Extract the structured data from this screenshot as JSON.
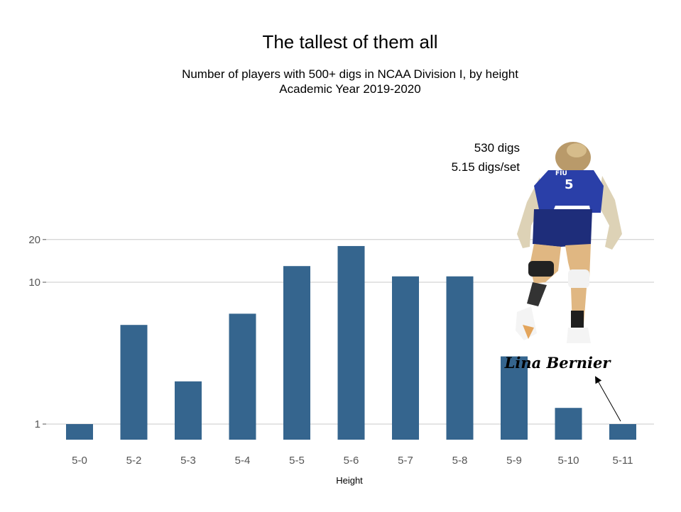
{
  "chart_data": {
    "type": "bar",
    "title": "The tallest of them all",
    "subtitle_line1": "Number of players with 500+ digs in NCAA Division I, by height",
    "subtitle_line2": "Academic Year 2019-2020",
    "xlabel": "Height",
    "ylabel": "",
    "y_scale": "log10",
    "y_ticks": [
      1,
      10,
      20
    ],
    "ylim": [
      0.7,
      20
    ],
    "grid": true,
    "categories": [
      "5-0",
      "5-2",
      "5-3",
      "5-4",
      "5-5",
      "5-6",
      "5-7",
      "5-8",
      "5-9",
      "5-10",
      "5-11"
    ],
    "values": [
      1,
      5,
      2,
      6,
      13,
      18,
      11,
      11,
      3,
      1.3,
      1
    ],
    "bar_color": "#35658e",
    "annotations": {
      "stat_line1": "530 digs",
      "stat_line2": "5.15 digs/set",
      "player_name": "Lina Bernier",
      "arrow_target": "5-11"
    }
  }
}
